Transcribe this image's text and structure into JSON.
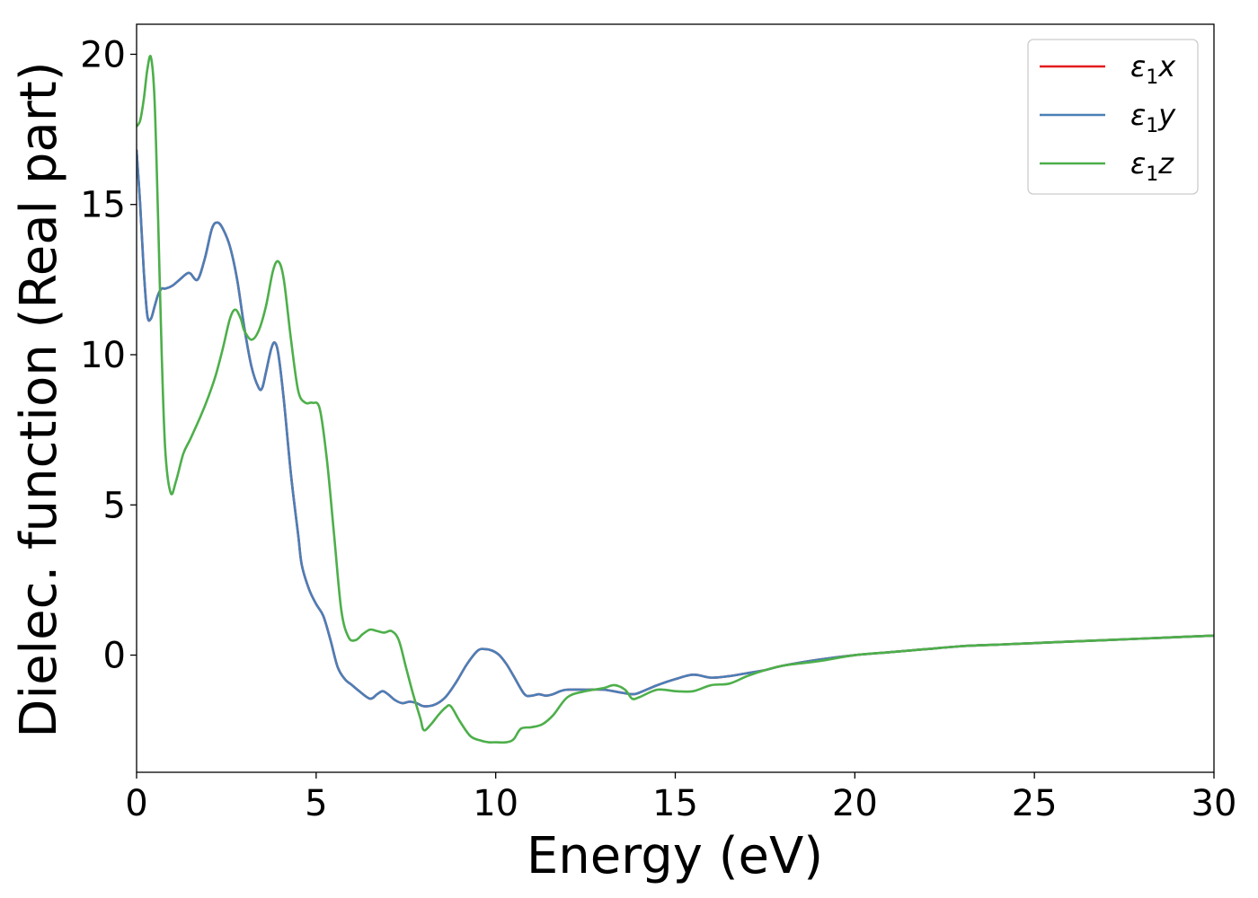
{
  "chart_data": {
    "type": "line",
    "xlabel": "Energy (eV)",
    "ylabel": "Dielec. function (Real part)",
    "xlim": [
      0,
      30
    ],
    "ylim": [
      -3.9,
      21
    ],
    "xticks": [
      0,
      5,
      10,
      15,
      20,
      25,
      30
    ],
    "yticks": [
      0,
      5,
      10,
      15,
      20
    ],
    "grid": false,
    "legend_position": "top-right",
    "series": [
      {
        "name": "ε₁x",
        "legend_main": "ε",
        "legend_sub": "1",
        "legend_suffix": "x",
        "color": "#e41a1c",
        "x": [
          0,
          0.1,
          0.2,
          0.3,
          0.4,
          0.5,
          0.6,
          0.7,
          0.8,
          1.0,
          1.2,
          1.4,
          1.5,
          1.7,
          1.9,
          2.1,
          2.25,
          2.4,
          2.6,
          2.8,
          3.0,
          3.2,
          3.4,
          3.5,
          3.6,
          3.75,
          3.85,
          3.95,
          4.1,
          4.3,
          4.5,
          4.6,
          4.8,
          5.0,
          5.2,
          5.4,
          5.6,
          5.8,
          6.0,
          6.2,
          6.5,
          6.7,
          6.85,
          7.0,
          7.2,
          7.4,
          7.6,
          7.8,
          8.0,
          8.3,
          8.6,
          8.9,
          9.2,
          9.5,
          9.7,
          9.9,
          10.1,
          10.3,
          10.5,
          10.8,
          11.0,
          11.2,
          11.4,
          11.6,
          11.8,
          12.0,
          12.5,
          13.0,
          13.5,
          13.8,
          14.0,
          14.5,
          15.0,
          15.5,
          16.0,
          16.5,
          17.0,
          17.5,
          18.0,
          19.0,
          20.0,
          21.0,
          22.0,
          23.0,
          24.0,
          25.0,
          26.0,
          27.0,
          28.0,
          29.0,
          30.0
        ],
        "y": [
          16.8,
          15.0,
          12.8,
          11.3,
          11.2,
          11.6,
          12.0,
          12.2,
          12.2,
          12.3,
          12.5,
          12.7,
          12.7,
          12.5,
          13.2,
          14.2,
          14.4,
          14.2,
          13.6,
          12.5,
          10.9,
          9.6,
          8.9,
          8.9,
          9.4,
          10.2,
          10.4,
          10.0,
          8.5,
          6.0,
          4.0,
          3.0,
          2.2,
          1.7,
          1.3,
          0.5,
          -0.4,
          -0.8,
          -1.0,
          -1.2,
          -1.45,
          -1.3,
          -1.2,
          -1.3,
          -1.5,
          -1.6,
          -1.55,
          -1.6,
          -1.7,
          -1.65,
          -1.4,
          -0.9,
          -0.3,
          0.15,
          0.2,
          0.15,
          0.0,
          -0.3,
          -0.7,
          -1.3,
          -1.35,
          -1.3,
          -1.35,
          -1.3,
          -1.2,
          -1.15,
          -1.15,
          -1.15,
          -1.25,
          -1.3,
          -1.25,
          -1.0,
          -0.8,
          -0.65,
          -0.75,
          -0.7,
          -0.6,
          -0.5,
          -0.35,
          -0.15,
          0.0,
          0.1,
          0.2,
          0.3,
          0.35,
          0.4,
          0.45,
          0.5,
          0.55,
          0.6,
          0.65
        ]
      },
      {
        "name": "ε₁y",
        "legend_main": "ε",
        "legend_sub": "1",
        "legend_suffix": "y",
        "color": "#4a7fb8",
        "x": [
          0,
          0.1,
          0.2,
          0.3,
          0.4,
          0.5,
          0.6,
          0.7,
          0.8,
          1.0,
          1.2,
          1.4,
          1.5,
          1.7,
          1.9,
          2.1,
          2.25,
          2.4,
          2.6,
          2.8,
          3.0,
          3.2,
          3.4,
          3.5,
          3.6,
          3.75,
          3.85,
          3.95,
          4.1,
          4.3,
          4.5,
          4.6,
          4.8,
          5.0,
          5.2,
          5.4,
          5.6,
          5.8,
          6.0,
          6.2,
          6.5,
          6.7,
          6.85,
          7.0,
          7.2,
          7.4,
          7.6,
          7.8,
          8.0,
          8.3,
          8.6,
          8.9,
          9.2,
          9.5,
          9.7,
          9.9,
          10.1,
          10.3,
          10.5,
          10.8,
          11.0,
          11.2,
          11.4,
          11.6,
          11.8,
          12.0,
          12.5,
          13.0,
          13.5,
          13.8,
          14.0,
          14.5,
          15.0,
          15.5,
          16.0,
          16.5,
          17.0,
          17.5,
          18.0,
          19.0,
          20.0,
          21.0,
          22.0,
          23.0,
          24.0,
          25.0,
          26.0,
          27.0,
          28.0,
          29.0,
          30.0
        ],
        "y": [
          16.8,
          15.0,
          12.8,
          11.3,
          11.2,
          11.6,
          12.0,
          12.2,
          12.2,
          12.3,
          12.5,
          12.7,
          12.7,
          12.5,
          13.2,
          14.2,
          14.4,
          14.2,
          13.6,
          12.5,
          10.9,
          9.6,
          8.9,
          8.9,
          9.4,
          10.2,
          10.4,
          10.0,
          8.5,
          6.0,
          4.0,
          3.0,
          2.2,
          1.7,
          1.3,
          0.5,
          -0.4,
          -0.8,
          -1.0,
          -1.2,
          -1.45,
          -1.3,
          -1.2,
          -1.3,
          -1.5,
          -1.6,
          -1.55,
          -1.6,
          -1.7,
          -1.65,
          -1.4,
          -0.9,
          -0.3,
          0.15,
          0.2,
          0.15,
          0.0,
          -0.3,
          -0.7,
          -1.3,
          -1.35,
          -1.3,
          -1.35,
          -1.3,
          -1.2,
          -1.15,
          -1.15,
          -1.15,
          -1.25,
          -1.3,
          -1.25,
          -1.0,
          -0.8,
          -0.65,
          -0.75,
          -0.7,
          -0.6,
          -0.5,
          -0.35,
          -0.15,
          0.0,
          0.1,
          0.2,
          0.3,
          0.35,
          0.4,
          0.45,
          0.5,
          0.55,
          0.6,
          0.65
        ]
      },
      {
        "name": "ε₁z",
        "legend_main": "ε",
        "legend_sub": "1",
        "legend_suffix": "z",
        "color": "#4daf4a",
        "x": [
          0,
          0.1,
          0.2,
          0.3,
          0.4,
          0.5,
          0.6,
          0.7,
          0.8,
          0.95,
          1.1,
          1.3,
          1.5,
          1.8,
          2.0,
          2.2,
          2.4,
          2.6,
          2.75,
          2.9,
          3.0,
          3.2,
          3.4,
          3.6,
          3.8,
          3.95,
          4.1,
          4.3,
          4.5,
          4.7,
          4.9,
          5.1,
          5.3,
          5.5,
          5.7,
          5.9,
          6.1,
          6.3,
          6.5,
          6.7,
          6.9,
          7.1,
          7.3,
          7.5,
          7.7,
          7.9,
          8.0,
          8.2,
          8.4,
          8.6,
          8.75,
          9.0,
          9.3,
          9.6,
          9.8,
          10.0,
          10.3,
          10.5,
          10.7,
          11.0,
          11.3,
          11.6,
          12.0,
          12.5,
          13.0,
          13.3,
          13.6,
          13.8,
          14.0,
          14.5,
          15.0,
          15.5,
          16.0,
          16.5,
          17.0,
          17.5,
          18.0,
          19.0,
          20.0,
          21.0,
          22.0,
          23.0,
          24.0,
          25.0,
          26.0,
          27.0,
          28.0,
          29.0,
          30.0
        ],
        "y": [
          17.6,
          17.8,
          18.5,
          19.5,
          19.9,
          18.5,
          14.5,
          10.0,
          6.8,
          5.4,
          5.8,
          6.7,
          7.2,
          8.0,
          8.6,
          9.3,
          10.2,
          11.2,
          11.5,
          11.2,
          10.8,
          10.5,
          10.8,
          11.6,
          12.8,
          13.1,
          12.5,
          10.5,
          8.8,
          8.4,
          8.4,
          8.2,
          6.5,
          4.0,
          1.5,
          0.6,
          0.5,
          0.7,
          0.85,
          0.8,
          0.75,
          0.8,
          0.5,
          -0.4,
          -1.3,
          -2.1,
          -2.5,
          -2.3,
          -2.0,
          -1.75,
          -1.7,
          -2.2,
          -2.7,
          -2.85,
          -2.9,
          -2.9,
          -2.9,
          -2.8,
          -2.45,
          -2.4,
          -2.3,
          -2.0,
          -1.4,
          -1.2,
          -1.1,
          -1.0,
          -1.15,
          -1.45,
          -1.4,
          -1.15,
          -1.2,
          -1.2,
          -1.0,
          -0.95,
          -0.7,
          -0.5,
          -0.35,
          -0.2,
          0.0,
          0.1,
          0.2,
          0.3,
          0.35,
          0.4,
          0.45,
          0.5,
          0.55,
          0.6,
          0.65
        ]
      }
    ]
  }
}
